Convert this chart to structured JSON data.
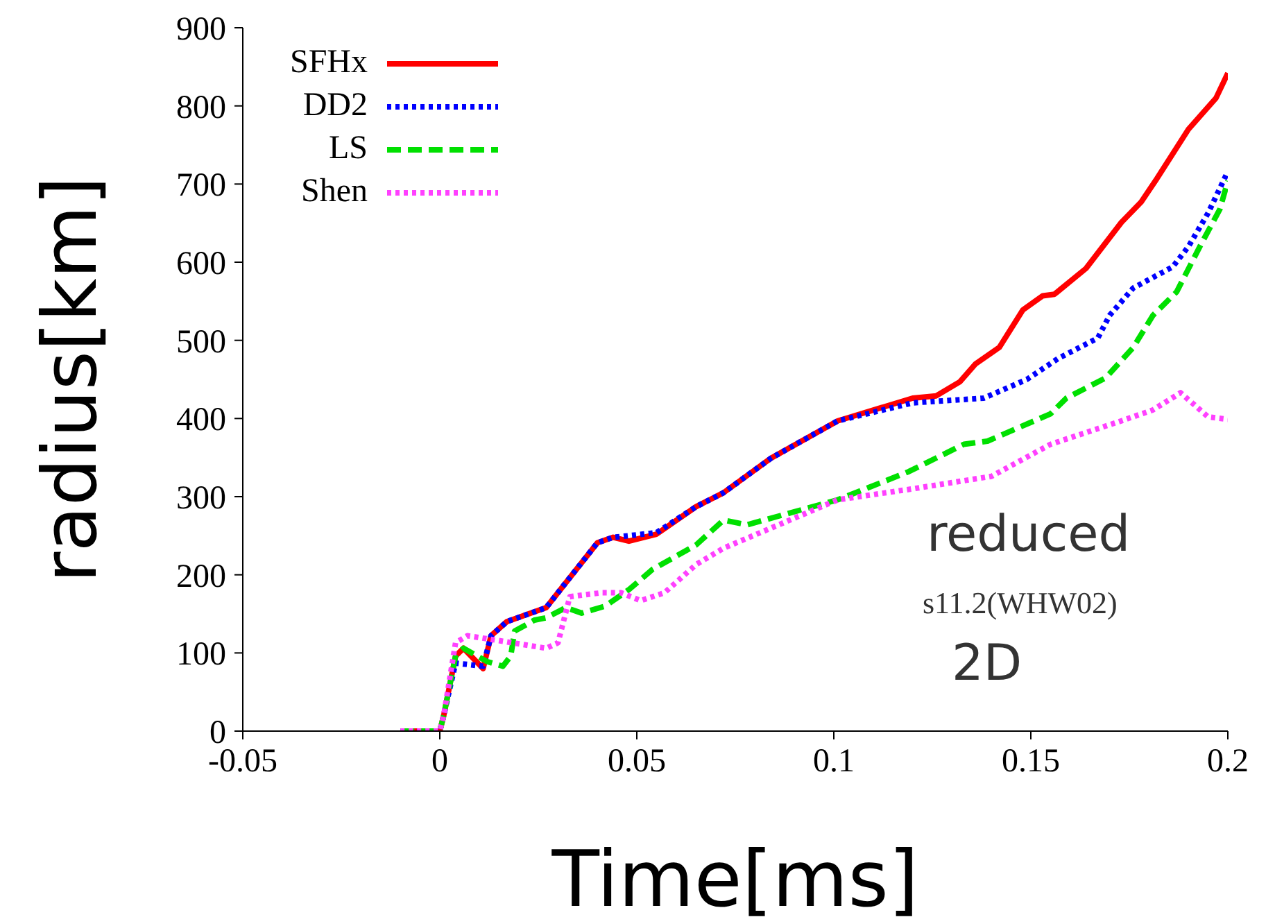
{
  "chart_data": {
    "type": "line",
    "xlabel": "Time[ms]",
    "ylabel": "radius[km]",
    "xlim": [
      -0.05,
      0.2
    ],
    "xticks": [
      -0.05,
      0,
      0.05,
      0.1,
      0.15,
      0.2
    ],
    "ylim": [
      0,
      900
    ],
    "yticks": [
      0,
      100,
      200,
      300,
      400,
      500,
      600,
      700,
      800,
      900
    ],
    "grid": false,
    "legend": "top left",
    "marker": "none",
    "annotations": [
      "reduced",
      "s11.2(WHW02)",
      "2D"
    ],
    "series": [
      {
        "name": "SFHx",
        "color": "#ff0000",
        "line_style": "solid",
        "x": [
          -0.01,
          0,
          0.001,
          0.004,
          0.006,
          0.011,
          0.013,
          0.017,
          0.027,
          0.032,
          0.04,
          0.044,
          0.048,
          0.055,
          0.065,
          0.072,
          0.084,
          0.101,
          0.12,
          0.126,
          0.132,
          0.136,
          0.142,
          0.148,
          0.153,
          0.156,
          0.164,
          0.173,
          0.178,
          0.182,
          0.19,
          0.197,
          0.2
        ],
        "values": [
          0,
          0,
          20,
          96,
          106,
          80,
          122,
          140,
          158,
          190,
          241,
          248,
          243,
          252,
          287,
          305,
          349,
          397,
          426,
          429,
          447,
          470,
          491,
          539,
          557,
          559,
          592,
          651,
          677,
          707,
          770,
          810,
          842
        ]
      },
      {
        "name": "DD2",
        "color": "#0000ff",
        "line_style": "dotted",
        "x": [
          -0.01,
          0,
          0.001,
          0.004,
          0.011,
          0.013,
          0.017,
          0.027,
          0.032,
          0.04,
          0.044,
          0.048,
          0.055,
          0.065,
          0.072,
          0.084,
          0.101,
          0.12,
          0.138,
          0.149,
          0.157,
          0.167,
          0.17,
          0.176,
          0.186,
          0.19,
          0.195,
          0.2
        ],
        "values": [
          0,
          0,
          20,
          87,
          83,
          122,
          140,
          158,
          190,
          241,
          248,
          250,
          254,
          287,
          305,
          349,
          397,
          420,
          426,
          450,
          477,
          503,
          532,
          567,
          594,
          620,
          663,
          716
        ]
      },
      {
        "name": "LS",
        "color": "#00e000",
        "line_style": "dashed",
        "x": [
          -0.01,
          0,
          0.001,
          0.004,
          0.006,
          0.012,
          0.016,
          0.018,
          0.019,
          0.024,
          0.027,
          0.032,
          0.036,
          0.042,
          0.048,
          0.054,
          0.065,
          0.072,
          0.078,
          0.101,
          0.119,
          0.133,
          0.139,
          0.155,
          0.159,
          0.169,
          0.176,
          0.181,
          0.187,
          0.193,
          0.198,
          0.2
        ],
        "values": [
          0,
          0,
          20,
          96,
          106,
          89,
          83,
          96,
          128,
          142,
          145,
          158,
          151,
          160,
          181,
          207,
          238,
          270,
          264,
          296,
          332,
          367,
          371,
          406,
          426,
          452,
          491,
          532,
          562,
          621,
          668,
          704
        ]
      },
      {
        "name": "Shen",
        "color": "#ff40ff",
        "line_style": "dotted",
        "x": [
          -0.01,
          0,
          0.001,
          0.004,
          0.007,
          0.016,
          0.027,
          0.03,
          0.033,
          0.041,
          0.046,
          0.051,
          0.057,
          0.065,
          0.072,
          0.101,
          0.12,
          0.14,
          0.155,
          0.173,
          0.181,
          0.188,
          0.195,
          0.2
        ],
        "values": [
          0,
          0,
          20,
          113,
          122,
          115,
          106,
          113,
          172,
          177,
          177,
          167,
          177,
          213,
          234,
          296,
          310,
          326,
          367,
          397,
          411,
          433,
          402,
          399
        ]
      }
    ]
  }
}
